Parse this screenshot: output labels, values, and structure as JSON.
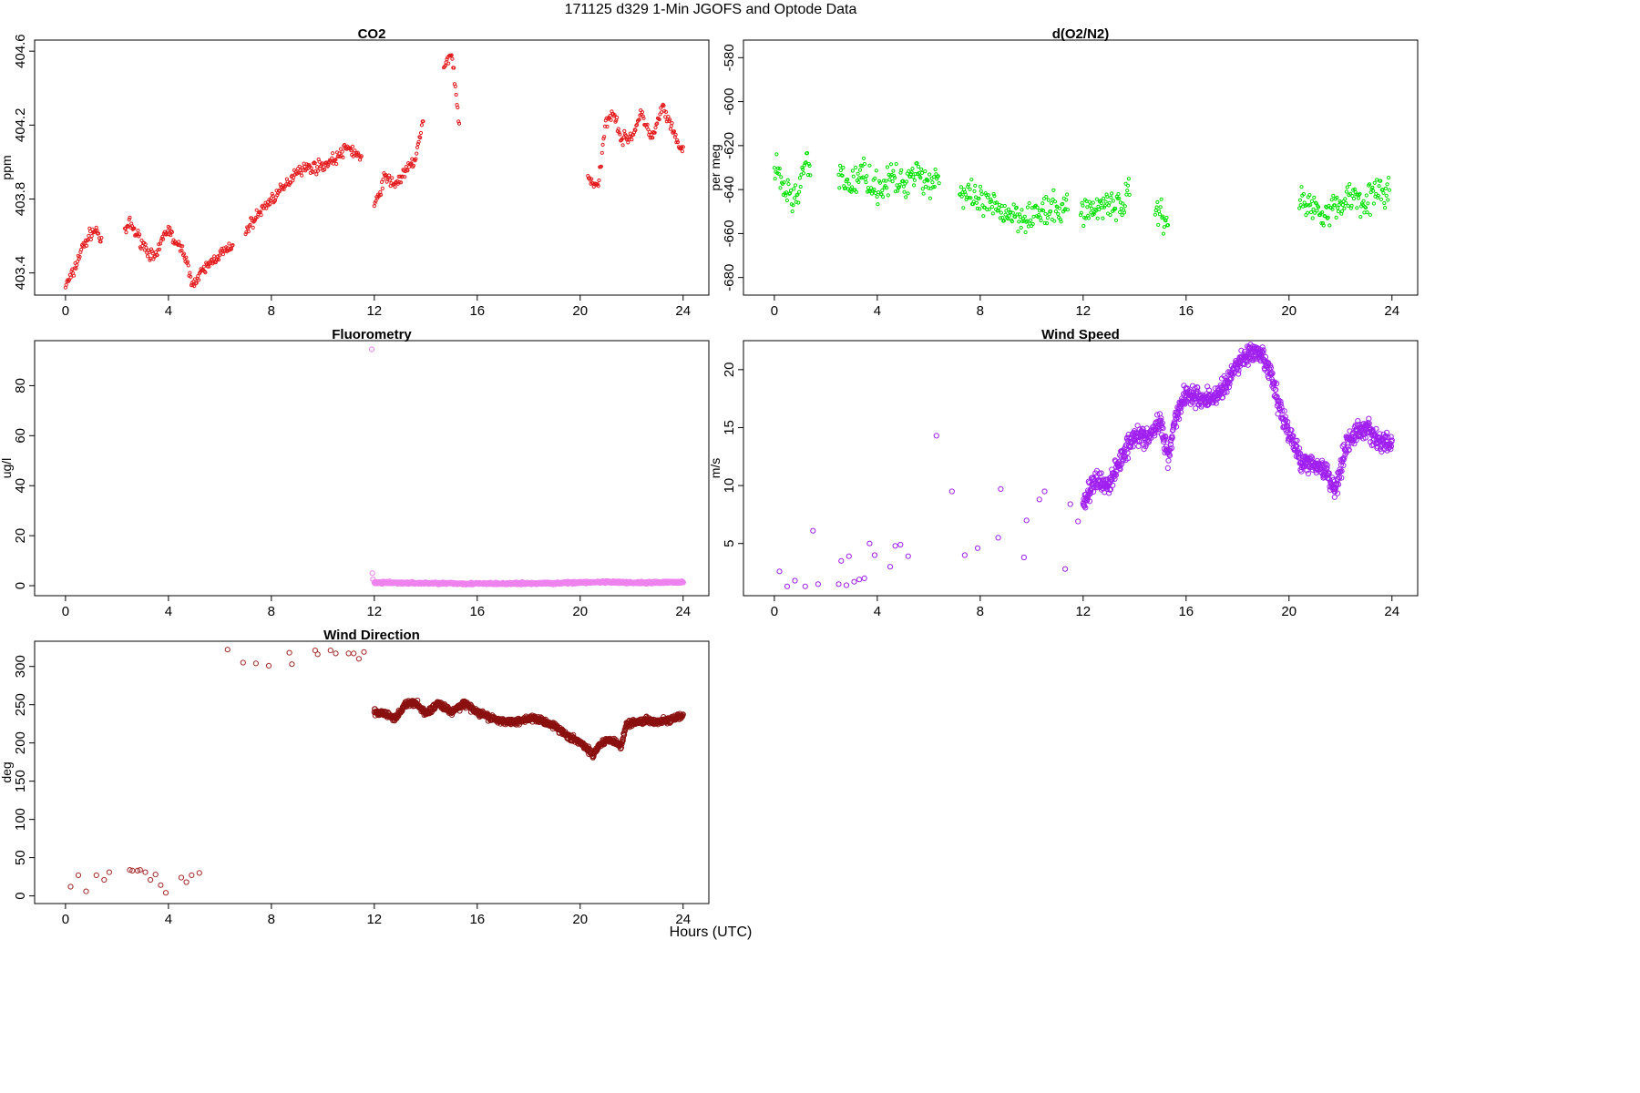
{
  "figure": {
    "title": "171125   d329   1-Min  JGOFS and Optode Data",
    "xlabel": "Hours (UTC)"
  },
  "chart_data": [
    {
      "id": "co2",
      "type": "scatter",
      "title": "CO2",
      "xlabel": "",
      "ylabel": "ppm",
      "xlim": [
        -1.2,
        25
      ],
      "ylim": [
        403.28,
        404.66
      ],
      "xticks": [
        0,
        4,
        8,
        12,
        16,
        20,
        24
      ],
      "yticks": [
        403.4,
        403.8,
        404.2,
        404.6
      ],
      "color": "#e31a1c",
      "marker_size": 1.6,
      "segments": [
        {
          "x": [
            0.0,
            0.3,
            0.6,
            1.0,
            1.25,
            1.4
          ],
          "y": [
            403.33,
            403.4,
            403.52,
            403.62,
            403.63,
            403.55
          ]
        },
        {
          "x": [
            2.3,
            2.5,
            2.8,
            3.2,
            3.5,
            3.8,
            4.0,
            4.3,
            4.6,
            4.8,
            5.0,
            5.4,
            5.8,
            6.2,
            6.5
          ],
          "y": [
            403.62,
            403.67,
            403.6,
            403.52,
            403.47,
            403.6,
            403.64,
            403.55,
            403.52,
            403.4,
            403.34,
            403.42,
            403.48,
            403.52,
            403.53
          ]
        },
        {
          "x": [
            7.0,
            7.5,
            8.0,
            8.5,
            9.0,
            9.5,
            10.0,
            10.5,
            11.0,
            11.5
          ],
          "y": [
            403.63,
            403.72,
            403.8,
            403.86,
            403.96,
            403.97,
            403.98,
            404.02,
            404.08,
            404.02
          ]
        },
        {
          "x": [
            12.0,
            12.4,
            12.8,
            13.2,
            13.6,
            13.9
          ],
          "y": [
            403.75,
            403.92,
            403.88,
            403.94,
            404.02,
            404.22
          ]
        },
        {
          "x": [
            14.7,
            15.0,
            15.3
          ],
          "y": [
            404.5,
            404.6,
            404.2
          ]
        },
        {
          "x": [
            20.3,
            20.7,
            21.0,
            21.3,
            21.6,
            22.0,
            22.4,
            22.8,
            23.2,
            23.6,
            24.0
          ],
          "y": [
            403.92,
            403.86,
            404.22,
            404.28,
            404.12,
            404.14,
            404.26,
            404.12,
            404.3,
            404.16,
            404.05
          ]
        }
      ]
    },
    {
      "id": "o2n2",
      "type": "scatter",
      "title": "d(O2/N2)",
      "xlabel": "",
      "ylabel": "per meg",
      "xlim": [
        -1.2,
        25
      ],
      "ylim": [
        -688,
        -572
      ],
      "xticks": [
        0,
        4,
        8,
        12,
        16,
        20,
        24
      ],
      "yticks": [
        -680,
        -660,
        -640,
        -620,
        -600,
        -580
      ],
      "color": "#00e000",
      "marker_size": 1.6,
      "segments": [
        {
          "x": [
            0.0,
            0.4,
            0.8,
            1.2,
            1.4
          ],
          "y": [
            -630,
            -640,
            -645,
            -628,
            -632
          ]
        },
        {
          "x": [
            2.5,
            3.0,
            3.5,
            4.0,
            4.5,
            5.0,
            5.5,
            6.0,
            6.4
          ],
          "y": [
            -635,
            -638,
            -632,
            -640,
            -635,
            -638,
            -630,
            -638,
            -632
          ]
        },
        {
          "x": [
            7.2,
            7.8,
            8.4,
            9.0,
            9.6,
            10.2,
            10.8,
            11.4
          ],
          "y": [
            -642,
            -645,
            -648,
            -650,
            -652,
            -651,
            -650,
            -648
          ]
        },
        {
          "x": [
            11.9,
            12.4,
            12.9,
            13.4,
            13.8
          ],
          "y": [
            -648,
            -650,
            -645,
            -648,
            -642
          ]
        },
        {
          "x": [
            14.8,
            15.0,
            15.3
          ],
          "y": [
            -648,
            -650,
            -655
          ]
        },
        {
          "x": [
            20.4,
            20.9,
            21.4,
            21.9,
            22.4,
            22.9,
            23.4,
            23.9
          ],
          "y": [
            -645,
            -648,
            -650,
            -648,
            -642,
            -645,
            -642,
            -640
          ]
        }
      ]
    },
    {
      "id": "fluor",
      "type": "scatter",
      "title": "Fluorometry",
      "xlabel": "",
      "ylabel": "ug/l",
      "xlim": [
        -1.2,
        25
      ],
      "ylim": [
        -4,
        98
      ],
      "xticks": [
        0,
        4,
        8,
        12,
        16,
        20,
        24
      ],
      "yticks": [
        0,
        20,
        40,
        60,
        80
      ],
      "color": "#ee82ee",
      "marker_size": 2.6,
      "outliers": {
        "x": [
          11.9,
          11.92,
          11.95
        ],
        "y": [
          94.5,
          5.0,
          2.5
        ]
      },
      "segments": [
        {
          "x": [
            12.0,
            13.0,
            14.0,
            15.0,
            16.0,
            17.0,
            18.0,
            19.0,
            20.0,
            21.0,
            22.0,
            23.0,
            24.0
          ],
          "y": [
            1.2,
            1.1,
            1.0,
            0.9,
            0.8,
            0.8,
            0.9,
            1.0,
            1.3,
            1.4,
            1.2,
            1.3,
            1.4
          ]
        }
      ]
    },
    {
      "id": "wspd",
      "type": "scatter",
      "title": "Wind Speed",
      "xlabel": "",
      "ylabel": "m/s",
      "xlim": [
        -1.2,
        25
      ],
      "ylim": [
        0.5,
        22.5
      ],
      "xticks": [
        0,
        4,
        8,
        12,
        16,
        20,
        24
      ],
      "yticks": [
        5,
        10,
        15,
        20
      ],
      "color": "#a020f0",
      "marker_size": 2.6,
      "sparse": {
        "x": [
          0.2,
          0.5,
          0.8,
          1.2,
          1.5,
          1.7,
          2.5,
          2.6,
          2.8,
          2.9,
          3.1,
          3.3,
          3.5,
          3.7,
          3.9,
          4.5,
          4.7,
          4.9,
          5.2,
          6.3,
          6.9,
          7.4,
          7.9,
          8.7,
          8.8,
          9.7,
          9.8,
          10.3,
          10.5,
          11.3,
          11.5,
          11.8
        ],
        "y": [
          2.6,
          1.3,
          1.8,
          1.3,
          6.1,
          1.5,
          1.5,
          3.5,
          1.4,
          3.9,
          1.7,
          1.9,
          2.0,
          5.0,
          4.0,
          3.0,
          4.8,
          4.9,
          3.9,
          14.3,
          9.5,
          4.0,
          4.6,
          5.5,
          9.7,
          3.8,
          7.0,
          8.8,
          9.5,
          2.8,
          8.4,
          6.9
        ]
      },
      "segments": [
        {
          "x": [
            12.0,
            12.5,
            13.0,
            13.5,
            14.0,
            14.5,
            15.0,
            15.3,
            15.6,
            16.0,
            16.5,
            17.0,
            17.5,
            18.0,
            18.5,
            19.0,
            19.3,
            19.6,
            20.0,
            20.5,
            21.0,
            21.5,
            21.8,
            22.2,
            22.6,
            23.0,
            23.5,
            24.0
          ],
          "y": [
            8.5,
            10.5,
            10.0,
            12.5,
            14.5,
            14.0,
            15.5,
            12.5,
            16.0,
            18.0,
            17.5,
            17.5,
            18.5,
            20.5,
            21.5,
            21.0,
            19.5,
            17.0,
            14.5,
            12.0,
            12.0,
            11.0,
            9.5,
            13.5,
            14.5,
            15.0,
            13.8,
            13.5
          ]
        }
      ]
    },
    {
      "id": "wdir",
      "type": "scatter",
      "title": "Wind Direction",
      "xlabel": "",
      "ylabel": "deg",
      "xlim": [
        -1.2,
        25
      ],
      "ylim": [
        -10,
        333
      ],
      "xticks": [
        0,
        4,
        8,
        12,
        16,
        20,
        24
      ],
      "yticks": [
        0,
        50,
        100,
        150,
        200,
        250,
        300
      ],
      "color": "#a52a2a",
      "dense_color": "#8b1010",
      "marker_size": 2.6,
      "sparse": {
        "x": [
          0.2,
          0.5,
          0.8,
          1.2,
          1.5,
          1.7,
          2.5,
          2.6,
          2.8,
          2.9,
          3.1,
          3.3,
          3.5,
          3.7,
          3.9,
          4.5,
          4.7,
          4.9,
          5.2,
          6.3,
          6.9,
          7.4,
          7.9,
          8.7,
          8.8,
          9.7,
          9.8,
          10.3,
          10.5,
          11.0,
          11.2,
          11.4,
          11.6
        ],
        "y": [
          12,
          27,
          6,
          27,
          21,
          31,
          34,
          33,
          33,
          34,
          31,
          21,
          28,
          14,
          4,
          24,
          18,
          27,
          30,
          322,
          305,
          304,
          301,
          318,
          303,
          321,
          316,
          321,
          317,
          317,
          317,
          310,
          319
        ]
      },
      "segments": [
        {
          "x": [
            12.0,
            12.4,
            12.8,
            13.2,
            13.6,
            14.0,
            14.5,
            15.0,
            15.5,
            16.0,
            16.5,
            17.0,
            17.5,
            18.0,
            18.5,
            19.0,
            19.5,
            20.0,
            20.5,
            20.8,
            21.2,
            21.6,
            21.8,
            22.2,
            22.6,
            23.0,
            23.5,
            24.0
          ],
          "y": [
            240,
            238,
            232,
            250,
            253,
            238,
            252,
            240,
            252,
            240,
            233,
            228,
            228,
            232,
            230,
            222,
            210,
            200,
            185,
            200,
            205,
            196,
            225,
            228,
            230,
            228,
            230,
            235
          ]
        }
      ]
    }
  ]
}
